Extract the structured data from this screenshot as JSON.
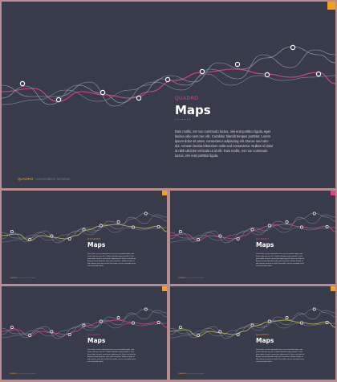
{
  "colors": {
    "background": "#383c4a",
    "frame": "#b98c8f",
    "accent_pink": "#e0408c",
    "accent_orange": "#f0a020",
    "accent_yellow": "#c9c24a",
    "line_gray": "#9ea3b2"
  },
  "slide": {
    "eyebrow": "QUADRO",
    "title": "Maps",
    "dots": ".......",
    "body": "Duis mollis, est non commodo luctus, nisi erat porttitor ligula, eget lacinia odio sem nec elit. Curabitur blandit tempus porttitor. Lorem ipsum dolor sit amet, consectetur adipiscing elit. Donec sed odio dui. Aenean lacinia bibendum nulla sed consectetur. Nullam id dolor id nibh ultricies vehicula ut id elit. Duis mollis, est non commodo luctus, nisi erat porttitor ligula.",
    "footer_brand": "QUADRO",
    "footer_text": " - presentation template"
  },
  "thumbnails": [
    {
      "eyebrow": "QUADRO",
      "title": "Maps",
      "accent": "yellow",
      "corner": "orange"
    },
    {
      "eyebrow": "QUADRO",
      "title": "Maps",
      "accent": "pink",
      "corner": "pink"
    },
    {
      "eyebrow": "QUADRO",
      "title": "Maps",
      "accent": "pink",
      "corner": "orange"
    },
    {
      "eyebrow": "QUADRO",
      "title": "Maps",
      "accent": "yellow",
      "corner": "orange"
    }
  ]
}
